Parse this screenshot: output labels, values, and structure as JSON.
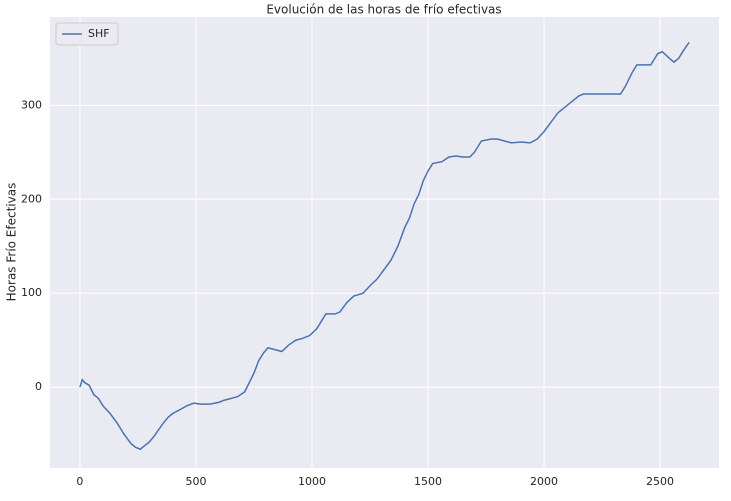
{
  "chart_data": {
    "type": "line",
    "title": "Evolución de las horas de frío efectivas",
    "y_label": "Horas Frío Efectivas",
    "x": [
      0,
      10,
      20,
      40,
      60,
      80,
      100,
      130,
      160,
      190,
      220,
      240,
      260,
      280,
      300,
      320,
      340,
      360,
      380,
      400,
      430,
      460,
      490,
      520,
      560,
      600,
      620,
      650,
      680,
      710,
      730,
      750,
      770,
      790,
      810,
      840,
      870,
      900,
      930,
      960,
      990,
      1020,
      1040,
      1060,
      1100,
      1120,
      1150,
      1180,
      1220,
      1250,
      1280,
      1310,
      1340,
      1370,
      1400,
      1420,
      1440,
      1460,
      1480,
      1500,
      1520,
      1560,
      1590,
      1620,
      1650,
      1680,
      1700,
      1730,
      1770,
      1800,
      1830,
      1860,
      1900,
      1940,
      1970,
      2000,
      2030,
      2060,
      2090,
      2120,
      2150,
      2170,
      2250,
      2330,
      2350,
      2380,
      2400,
      2460,
      2490,
      2510,
      2540,
      2560,
      2580,
      2600,
      2625
    ],
    "series": [
      {
        "name": "SHF",
        "color": "#4c72b0",
        "values": [
          0,
          8,
          5,
          2,
          -8,
          -12,
          -20,
          -28,
          -38,
          -50,
          -60,
          -64,
          -66,
          -62,
          -58,
          -52,
          -45,
          -38,
          -32,
          -28,
          -24,
          -20,
          -17,
          -18,
          -18,
          -16,
          -14,
          -12,
          -10,
          -5,
          5,
          15,
          28,
          36,
          42,
          40,
          38,
          45,
          50,
          52,
          55,
          62,
          70,
          78,
          78,
          80,
          90,
          97,
          100,
          108,
          115,
          125,
          135,
          150,
          170,
          180,
          195,
          205,
          220,
          230,
          238,
          240,
          245,
          246,
          245,
          245,
          250,
          262,
          264,
          264,
          262,
          260,
          261,
          260,
          264,
          272,
          282,
          292,
          298,
          304,
          310,
          312,
          312,
          312,
          320,
          335,
          343,
          343,
          355,
          357,
          350,
          346,
          350,
          358,
          367
        ]
      }
    ],
    "xlim": [
      -129,
      2754
    ],
    "ylim": [
      -86,
      394
    ],
    "xticks": [
      0,
      500,
      1000,
      1500,
      2000,
      2500
    ],
    "yticks": [
      0,
      100,
      200,
      300
    ],
    "grid": true,
    "legend": "upper left"
  }
}
